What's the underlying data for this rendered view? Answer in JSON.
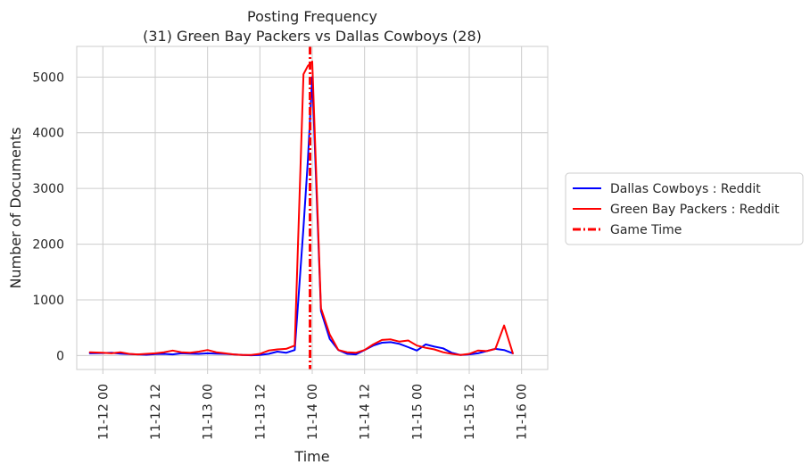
{
  "chart_data": {
    "type": "line",
    "title": [
      "Posting Frequency",
      "(31) Green Bay Packers vs Dallas Cowboys (28)"
    ],
    "xlabel": "Time",
    "ylabel": "Number of Documents",
    "xlim": [
      "11-11 18:00",
      "11-16 06:00"
    ],
    "ylim": [
      -250,
      5550
    ],
    "grid": true,
    "legend_placement": "outside-right",
    "x_ticks": [
      "11-12 00",
      "11-12 12",
      "11-13 00",
      "11-13 12",
      "11-14 00",
      "11-14 12",
      "11-15 00",
      "11-15 12",
      "11-16 00"
    ],
    "y_ticks": [
      "0",
      "1000",
      "2000",
      "3000",
      "4000",
      "5000"
    ],
    "y_tick_values": [
      0,
      1000,
      2000,
      3000,
      4000,
      5000
    ],
    "x": [
      "11-11 21",
      "11-12 00",
      "11-12 02",
      "11-12 04",
      "11-12 06",
      "11-12 08",
      "11-12 10",
      "11-12 12",
      "11-12 14",
      "11-12 16",
      "11-12 18",
      "11-12 20",
      "11-12 22",
      "11-13 00",
      "11-13 02",
      "11-13 04",
      "11-13 06",
      "11-13 08",
      "11-13 10",
      "11-13 12",
      "11-13 14",
      "11-13 16",
      "11-13 18",
      "11-13 20",
      "11-13 22",
      "11-13 23",
      "11-14 00",
      "11-14 02",
      "11-14 04",
      "11-14 06",
      "11-14 08",
      "11-14 10",
      "11-14 12",
      "11-14 14",
      "11-14 16",
      "11-14 18",
      "11-14 20",
      "11-14 22",
      "11-15 00",
      "11-15 02",
      "11-15 04",
      "11-15 06",
      "11-15 08",
      "11-15 10",
      "11-15 12",
      "11-15 14",
      "11-15 16",
      "11-15 18",
      "11-15 20",
      "11-15 22"
    ],
    "series": [
      {
        "name": "Dallas Cowboys : Reddit",
        "color": "#0000ff",
        "values": [
          40,
          45,
          50,
          35,
          25,
          20,
          15,
          25,
          30,
          20,
          40,
          35,
          30,
          40,
          35,
          30,
          20,
          10,
          5,
          10,
          30,
          70,
          50,
          100,
          2300,
          3500,
          5000,
          800,
          300,
          100,
          30,
          20,
          100,
          180,
          230,
          240,
          210,
          150,
          90,
          200,
          160,
          130,
          50,
          10,
          20,
          40,
          80,
          120,
          100,
          40
        ]
      },
      {
        "name": "Green Bay Packers : Reddit",
        "color": "#ff0000",
        "values": [
          60,
          50,
          40,
          60,
          30,
          20,
          30,
          40,
          60,
          90,
          60,
          50,
          70,
          100,
          60,
          40,
          20,
          10,
          10,
          30,
          90,
          110,
          120,
          180,
          5050,
          5200,
          5280,
          850,
          380,
          100,
          60,
          50,
          100,
          200,
          280,
          290,
          250,
          270,
          180,
          140,
          110,
          60,
          30,
          10,
          30,
          90,
          80,
          120,
          540,
          40
        ]
      }
    ],
    "markers": [
      {
        "name": "Game Time",
        "x": "11-13 23:30",
        "color": "#ff0000",
        "style": "dashdot"
      }
    ]
  }
}
